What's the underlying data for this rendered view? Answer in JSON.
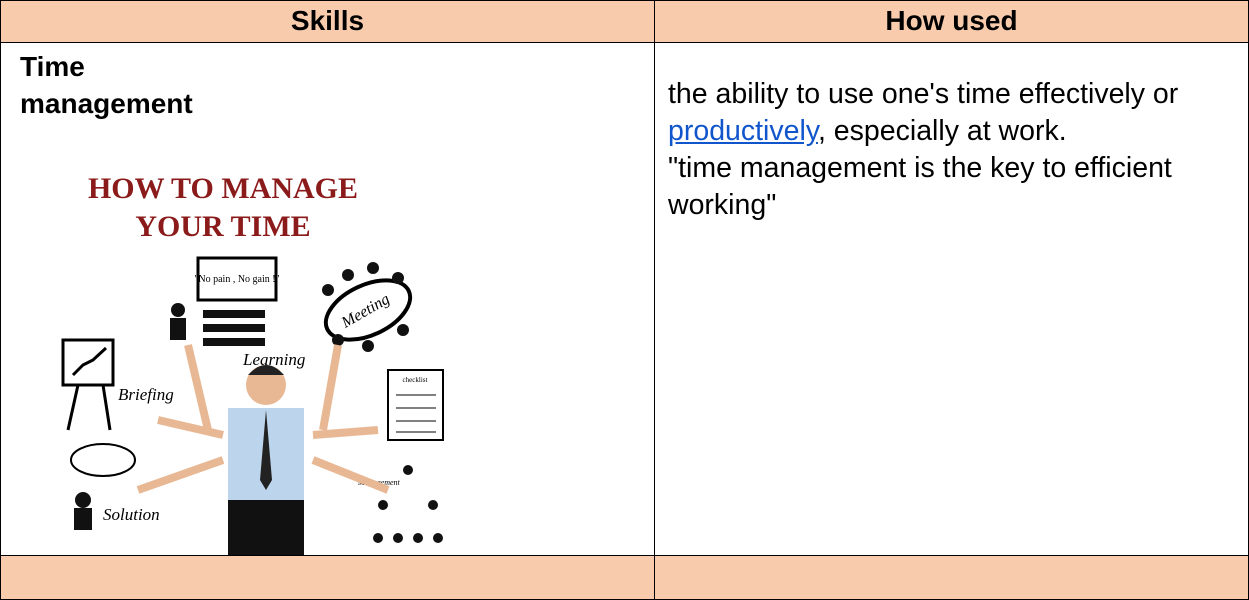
{
  "table": {
    "header": [
      "Skills",
      "How used"
    ],
    "rows": [
      [
        {
          "title": "Time management",
          "image": {
            "heading": "HOW TO MANAGE YOUR TIME",
            "speech": "\"No pain , No gain !\"",
            "labels": [
              "Meeting",
              "Learning",
              "Briefing",
              "Solution",
              "Management",
              "checklist"
            ]
          }
        },
        {
          "definition_before": "the ability to use one's time effectively or ",
          "link": "productively",
          "definition_after": ", especially at work.",
          "example": "\"time management is the key to efficient working\""
        }
      ]
    ]
  }
}
